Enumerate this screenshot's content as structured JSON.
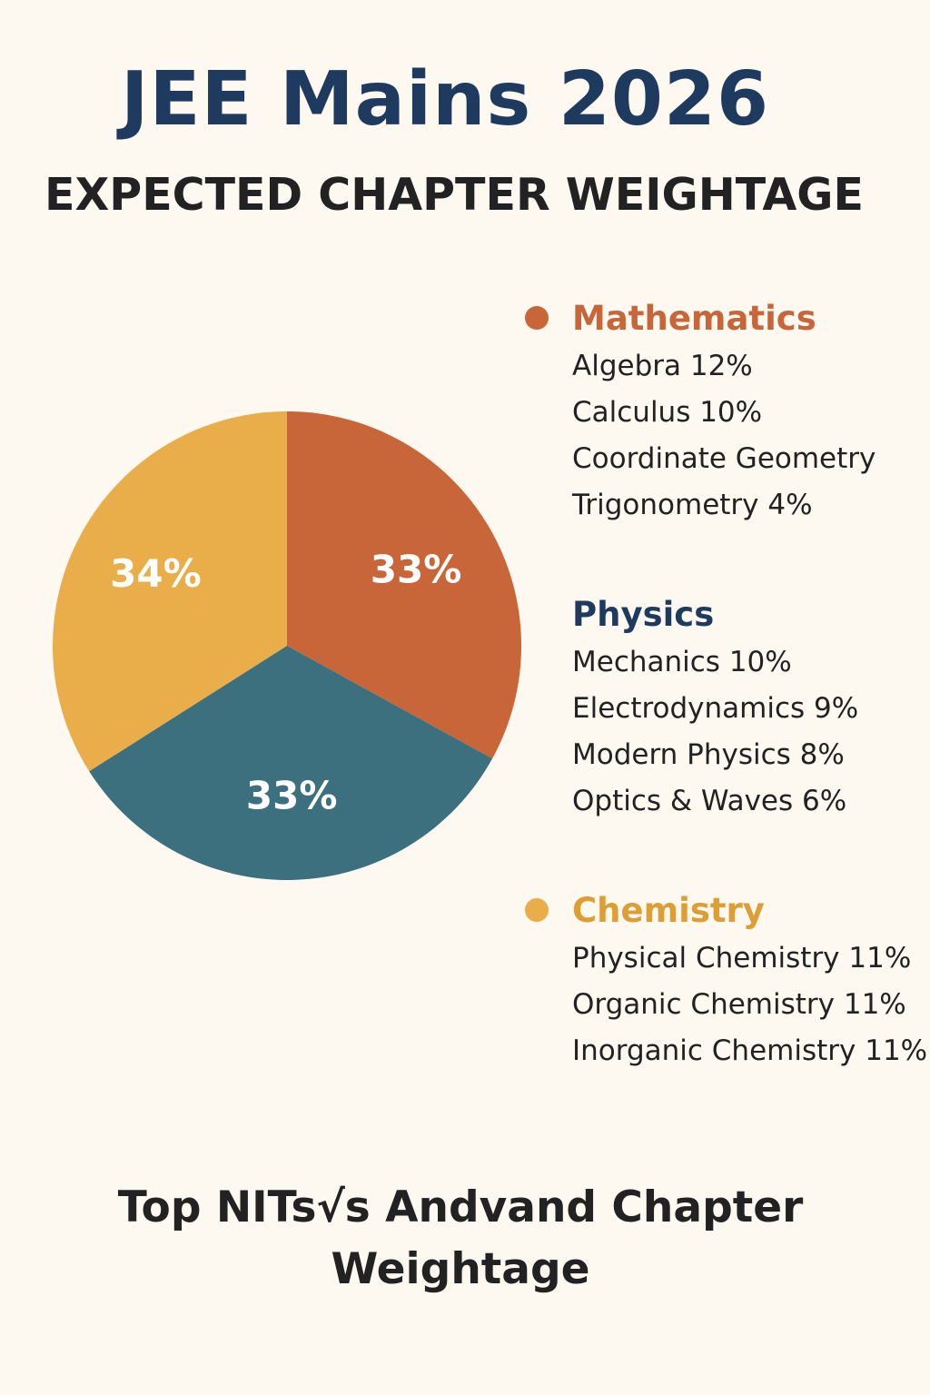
{
  "title": "JEE Mains 2026",
  "subtitle": "EXPECTED CHAPTER WEIGHTAGE",
  "footer": {
    "line1": "Top NITs√s Andvand Chapter",
    "line2": "Weightage"
  },
  "colors": {
    "background": "#fdf9f0",
    "title": "#1e3a5f",
    "mathematics": "#c8663a",
    "physics": "#3d707e",
    "physics_heading": "#1e3a5f",
    "chemistry": "#e9ad4a",
    "chemistry_heading": "#dd9e35"
  },
  "chart_data": {
    "type": "pie",
    "slices": [
      {
        "label": "33%",
        "value": 33,
        "color": "#c8663a"
      },
      {
        "label": "33%",
        "value": 33,
        "color": "#3d707e"
      },
      {
        "label": "34%",
        "value": 34,
        "color": "#e9ad4a"
      }
    ],
    "start_angle_deg": 0,
    "direction": "clockwise"
  },
  "legend": {
    "groups": [
      {
        "name": "Mathematics",
        "items": [
          "Algebra 12%",
          "Calculus 10%",
          "Coordinate Geometry",
          "Trigonometry 4%"
        ]
      },
      {
        "name": "Physics",
        "items": [
          "Mechanics 10%",
          "Electrodynamics 9%",
          "Modern Physics 8%",
          "Optics & Waves 6%"
        ]
      },
      {
        "name": "Chemistry",
        "items": [
          "Physical Chemistry 11%",
          "Organic Chemistry 11%",
          "Inorganic Chemistry 11%"
        ]
      }
    ]
  }
}
